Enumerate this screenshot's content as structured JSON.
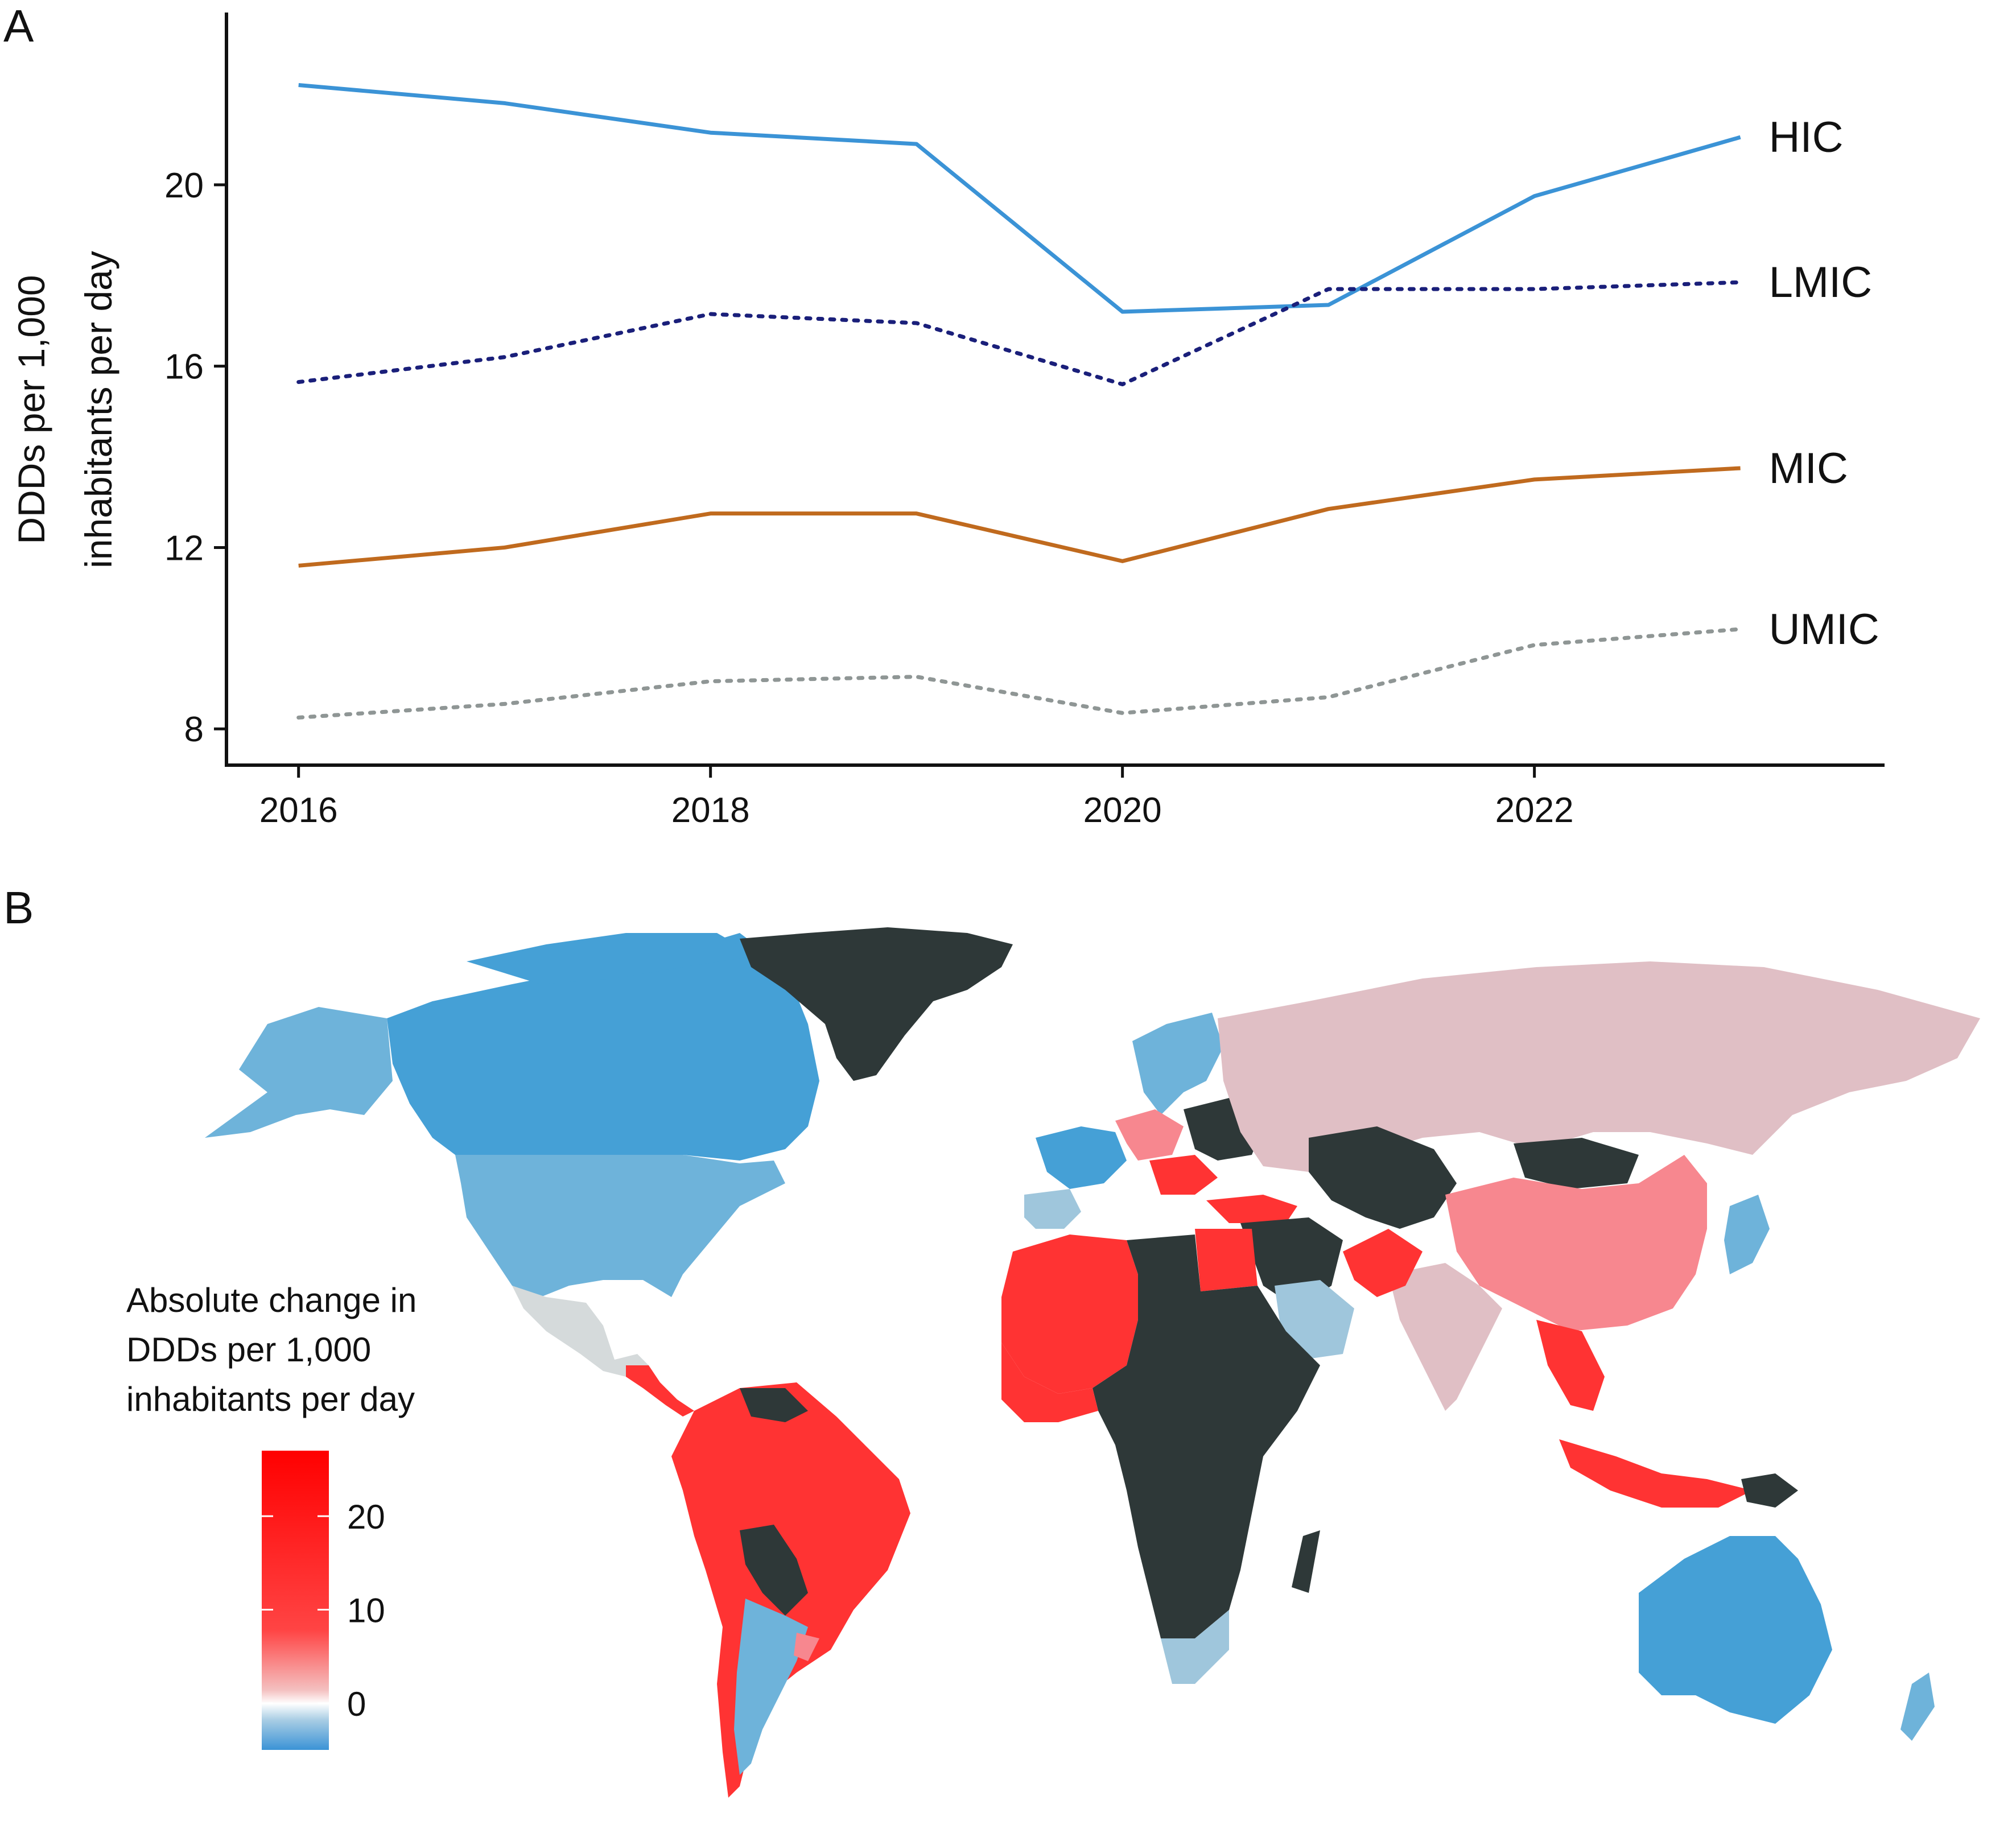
{
  "panels": {
    "a_label": "A",
    "b_label": "B"
  },
  "chart_data": [
    {
      "type": "line",
      "panel": "A",
      "title": "",
      "xlabel": "",
      "ylabel_line1": "DDDs per 1,000",
      "ylabel_line2": "inhabitants per day",
      "x": [
        2016,
        2017,
        2018,
        2019,
        2020,
        2021,
        2022,
        2023
      ],
      "x_ticks": [
        "2016",
        "2018",
        "2020",
        "2022"
      ],
      "x_tick_values": [
        2016,
        2018,
        2020,
        2022
      ],
      "y_ticks": [
        "8",
        "12",
        "16",
        "20"
      ],
      "y_tick_values": [
        8,
        12,
        16,
        20
      ],
      "xlim": [
        2015.65,
        2023.7
      ],
      "ylim": [
        7.2,
        23.8
      ],
      "grid": false,
      "series": [
        {
          "name": "HIC",
          "label": "HIC",
          "color": "#3b93d6",
          "style": "solid",
          "values": [
            22.2,
            21.8,
            21.15,
            20.9,
            17.2,
            17.35,
            19.75,
            21.05
          ]
        },
        {
          "name": "LMIC",
          "label": "LMIC",
          "color": "#1a1f7a",
          "style": "dotted",
          "values": [
            15.65,
            16.2,
            17.15,
            16.95,
            15.6,
            17.7,
            17.7,
            17.85
          ]
        },
        {
          "name": "MIC",
          "label": "MIC",
          "color": "#c06a1e",
          "style": "solid",
          "values": [
            11.6,
            12.0,
            12.75,
            12.75,
            11.7,
            12.85,
            13.5,
            13.75
          ]
        },
        {
          "name": "UMIC",
          "label": "UMIC",
          "color": "#8f9695",
          "style": "dotted",
          "values": [
            8.25,
            8.55,
            9.05,
            9.15,
            8.35,
            8.7,
            9.85,
            10.2
          ]
        }
      ]
    },
    {
      "type": "choropleth",
      "panel": "B",
      "title": "",
      "legend": {
        "title_lines": [
          "Absolute change in",
          "DDDs per 1,000",
          "inhabitants per day"
        ],
        "ticks": [
          "20",
          "10",
          "0"
        ],
        "tick_values": [
          20,
          10,
          0
        ],
        "range": [
          -5,
          27
        ],
        "colors": {
          "low": "#4a9fd6",
          "mid": "#ffffff",
          "high": "#ff0000"
        },
        "placement": "bottom-left"
      },
      "category_colors": {
        "no_data": "#2e3838",
        "strong_increase": "#ff3333",
        "moderate_increase": "#f7878f",
        "slight_increase": "#e0bfc5",
        "no_change": "#d5dadb",
        "slight_decrease": "#9fc6dc",
        "decrease": "#6eb3da",
        "strong_decrease": "#45a0d6"
      }
    }
  ]
}
